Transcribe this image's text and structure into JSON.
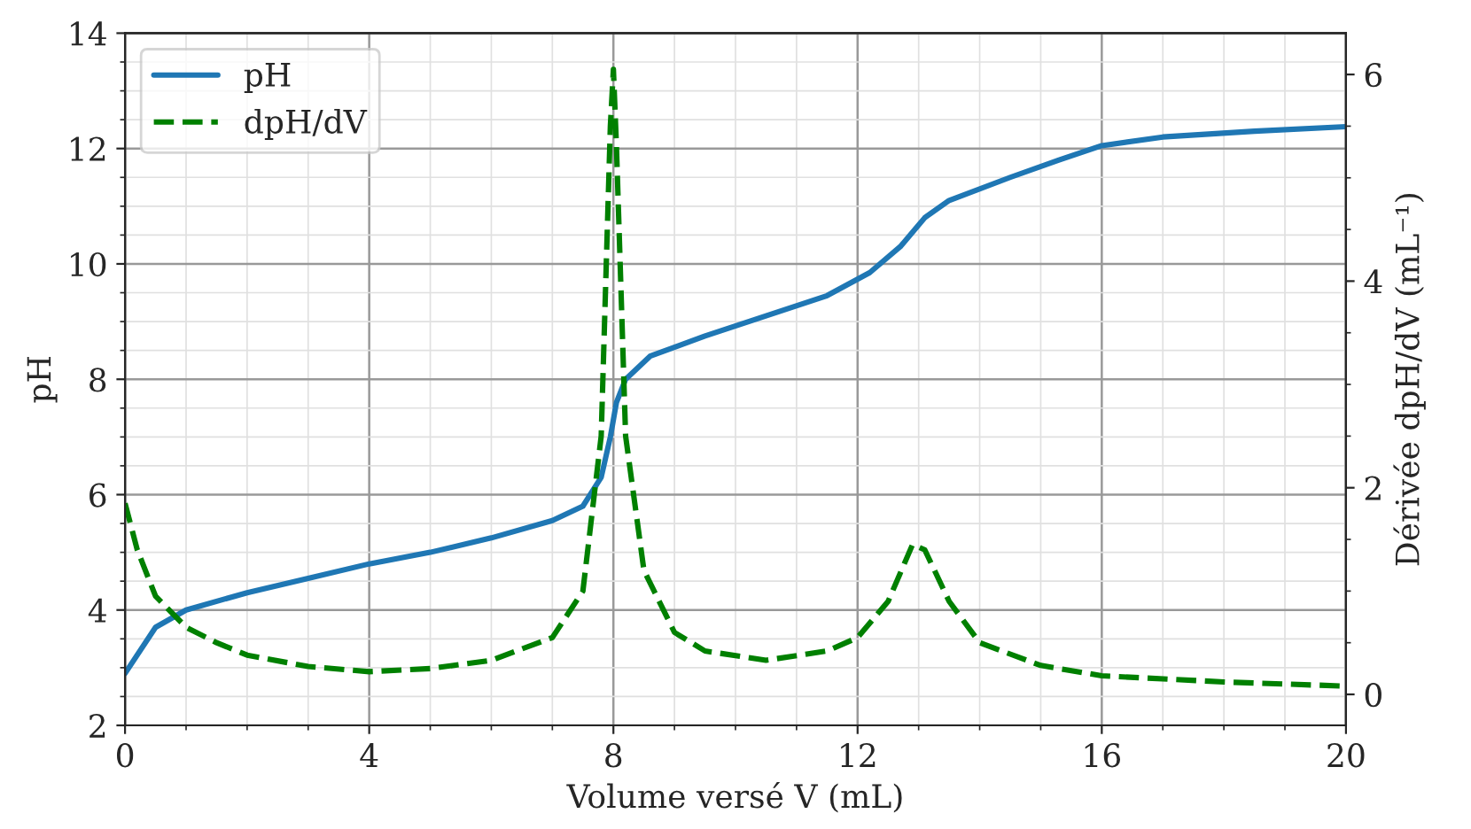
{
  "chart_data": {
    "type": "line",
    "xlabel": "Volume versé V (mL)",
    "ylabel": "pH",
    "y2label": "Dérivée dpH/dV (mL⁻¹)",
    "xlim": [
      0,
      20
    ],
    "xticks": [
      0,
      4,
      8,
      12,
      16,
      20
    ],
    "ylim": [
      2,
      14
    ],
    "yticks": [
      2,
      4,
      6,
      8,
      10,
      12,
      14
    ],
    "y2lim": [
      -0.3,
      6.4
    ],
    "y2ticks": [
      0,
      2,
      4,
      6
    ],
    "grid": true,
    "legend": "top left",
    "marker": "none",
    "series": [
      {
        "name": "pH",
        "color": "#1f77b4",
        "line_style": "solid",
        "x": [
          0,
          0.5,
          1,
          2,
          3,
          4,
          5,
          6,
          7,
          7.5,
          7.8,
          7.95,
          8.05,
          8.2,
          8.6,
          9.5,
          10.5,
          11.5,
          12.2,
          12.7,
          13.1,
          13.5,
          14.5,
          15.3,
          16,
          17,
          18.5,
          20
        ],
        "values": [
          2.9,
          3.7,
          4.0,
          4.3,
          4.55,
          4.8,
          5.0,
          5.25,
          5.55,
          5.8,
          6.3,
          7.0,
          7.6,
          8.0,
          8.4,
          8.75,
          9.1,
          9.45,
          9.85,
          10.3,
          10.8,
          11.1,
          11.5,
          11.8,
          12.05,
          12.2,
          12.3,
          12.38
        ]
      },
      {
        "name": "dpH/dV",
        "color": "#008000",
        "line_style": "dashed",
        "axis": "y2",
        "x": [
          0,
          0.2,
          0.5,
          1,
          1.5,
          2,
          3,
          4,
          5,
          6,
          7,
          7.5,
          7.8,
          7.95,
          8.0,
          8.05,
          8.2,
          8.5,
          9,
          9.5,
          10.5,
          11.5,
          12,
          12.5,
          12.9,
          13.1,
          13.5,
          14,
          15,
          16,
          18,
          20
        ],
        "values": [
          1.85,
          1.4,
          0.95,
          0.65,
          0.5,
          0.38,
          0.27,
          0.22,
          0.25,
          0.33,
          0.55,
          1.0,
          2.5,
          5.5,
          6.05,
          5.3,
          2.5,
          1.2,
          0.6,
          0.42,
          0.33,
          0.42,
          0.55,
          0.9,
          1.45,
          1.4,
          0.9,
          0.5,
          0.28,
          0.18,
          0.12,
          0.08
        ]
      }
    ]
  }
}
